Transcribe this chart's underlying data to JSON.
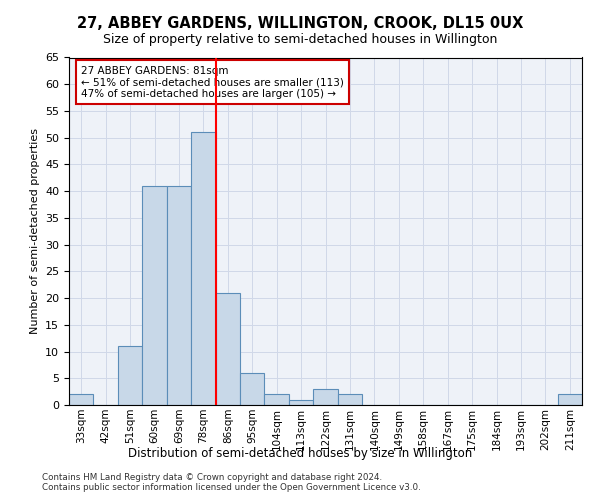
{
  "title1": "27, ABBEY GARDENS, WILLINGTON, CROOK, DL15 0UX",
  "title2": "Size of property relative to semi-detached houses in Willington",
  "xlabel": "Distribution of semi-detached houses by size in Willington",
  "ylabel": "Number of semi-detached properties",
  "footnote": "Contains HM Land Registry data © Crown copyright and database right 2024.\nContains public sector information licensed under the Open Government Licence v3.0.",
  "bins": [
    "33sqm",
    "42sqm",
    "51sqm",
    "60sqm",
    "69sqm",
    "78sqm",
    "86sqm",
    "95sqm",
    "104sqm",
    "113sqm",
    "122sqm",
    "131sqm",
    "140sqm",
    "149sqm",
    "158sqm",
    "167sqm",
    "175sqm",
    "184sqm",
    "193sqm",
    "202sqm",
    "211sqm"
  ],
  "bar_values": [
    2,
    0,
    11,
    41,
    41,
    51,
    21,
    6,
    2,
    1,
    3,
    2,
    0,
    0,
    0,
    0,
    0,
    0,
    0,
    0,
    2
  ],
  "bar_color": "#c8d8e8",
  "bar_edge_color": "#5b8db8",
  "annotation_title": "27 ABBEY GARDENS: 81sqm",
  "annotation_line1": "← 51% of semi-detached houses are smaller (113)",
  "annotation_line2": "47% of semi-detached houses are larger (105) →",
  "annotation_box_color": "#ffffff",
  "annotation_edge_color": "#cc0000",
  "red_line_bin_index": 5,
  "ylim": [
    0,
    65
  ],
  "yticks": [
    0,
    5,
    10,
    15,
    20,
    25,
    30,
    35,
    40,
    45,
    50,
    55,
    60,
    65
  ],
  "grid_color": "#d0d8e8",
  "background_color": "#eef2f8"
}
